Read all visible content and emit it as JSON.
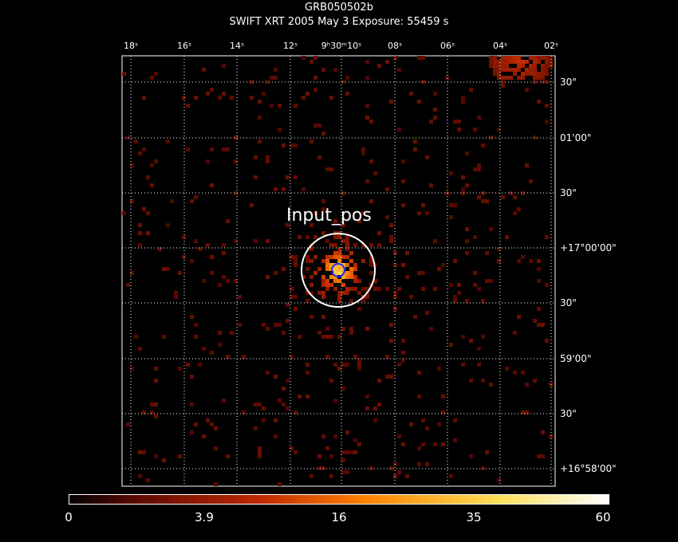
{
  "header": {
    "title": "GRB050502b",
    "subtitle": "SWIFT XRT   2005 May  3    Exposure: 55459 s"
  },
  "ra_ticks": [
    "18ˢ",
    "16ˢ",
    "14ˢ",
    "12ˢ",
    "9ʰ30ᵐ10ˢ",
    "08ˢ",
    "06ˢ",
    "04ˢ",
    "02ˢ"
  ],
  "dec_ticks": [
    "30\"",
    "01'00\"",
    "30\"",
    "+17°00'00\"",
    "30\"",
    "59'00\"",
    "30\"",
    "+16°58'00\""
  ],
  "source": {
    "label": "Input_pos"
  },
  "colorbar": {
    "labels": [
      "0",
      "3.9",
      "16",
      "35",
      "60"
    ],
    "scale": "sqrt",
    "min": 0,
    "max": 60
  },
  "colors": {
    "background": "#000000",
    "grid": "#ffffff",
    "frame": "#ffffff",
    "source_circle": "#ffffff",
    "position_circle": "#1a2cff"
  }
}
